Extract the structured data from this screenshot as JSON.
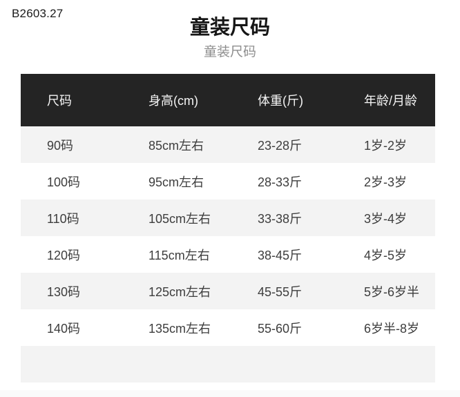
{
  "page": {
    "sku": "B2603.27",
    "title": "童装尺码",
    "subtitle": "童装尺码"
  },
  "table": {
    "headers": [
      "尺码",
      "身高(cm)",
      "体重(斤)",
      "年龄/月龄"
    ],
    "rows": [
      [
        "90码",
        "85cm左右",
        "23-28斤",
        "1岁-2岁"
      ],
      [
        "100码",
        "95cm左右",
        "28-33斤",
        "2岁-3岁"
      ],
      [
        "110码",
        "105cm左右",
        "33-38斤",
        "3岁-4岁"
      ],
      [
        "120码",
        "115cm左右",
        "38-45斤",
        "4岁-5岁"
      ],
      [
        "130码",
        "125cm左右",
        "45-55斤",
        "5岁-6岁半"
      ],
      [
        "140码",
        "135cm左右",
        "55-60斤",
        "6岁半-8岁"
      ]
    ],
    "colors": {
      "header_bg": "#242424",
      "header_text": "#f5f5f5",
      "row_alt_bg": "#f3f3f3",
      "row_bg": "#ffffff",
      "body_text": "#3d3d3d"
    }
  }
}
